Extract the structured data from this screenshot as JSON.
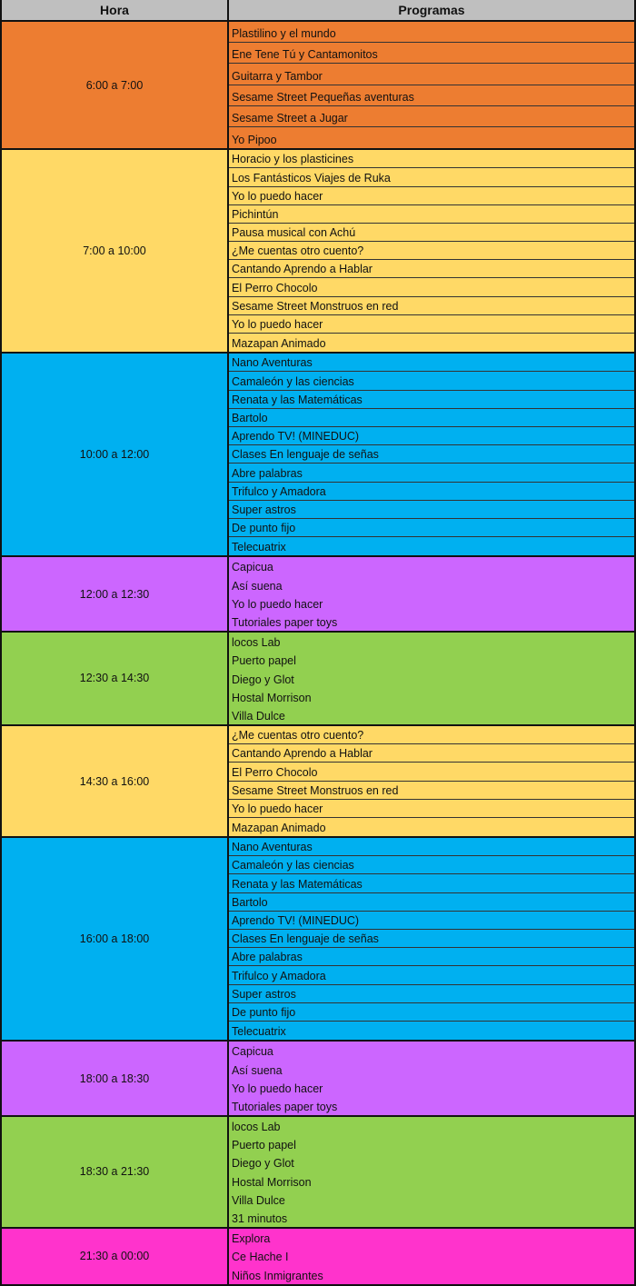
{
  "header": {
    "hora": "Hora",
    "programas": "Programas"
  },
  "blocks": [
    {
      "hora": "6:00 a 7:00",
      "color": "#ED7D31",
      "row_lines": true,
      "programs": [
        "Plastilino y el mundo",
        "Ene Tene Tú y Cantamonitos",
        "Guitarra y Tambor",
        "Sesame Street Pequeñas aventuras",
        "Sesame Street a Jugar",
        "Yo Pipoo"
      ]
    },
    {
      "hora": "7:00 a 10:00",
      "color": "#FFD966",
      "row_lines": true,
      "programs": [
        "Horacio y los plasticines",
        "Los Fantásticos Viajes de Ruka",
        "Yo lo puedo hacer",
        "Pichintún",
        "Pausa musical con Achú",
        "¿Me cuentas otro cuento?",
        "Cantando Aprendo a Hablar",
        "El Perro Chocolo",
        "Sesame Street Monstruos en red",
        "Yo lo puedo hacer",
        "Mazapan Animado"
      ]
    },
    {
      "hora": "10:00 a 12:00",
      "color": "#00B0F0",
      "row_lines": true,
      "programs": [
        "Nano Aventuras",
        "Camaleón y las ciencias",
        "Renata y las Matemáticas",
        "Bartolo",
        "Aprendo TV! (MINEDUC)",
        "Clases En lenguaje de señas",
        "Abre palabras",
        "Trifulco y Amadora",
        "Super astros",
        "De punto fijo",
        "Telecuatrix"
      ]
    },
    {
      "hora": "12:00 a 12:30",
      "color": "#CC66FF",
      "row_lines": false,
      "programs": [
        "Capicua",
        "Así suena",
        "Yo lo puedo hacer",
        "Tutoriales paper toys"
      ]
    },
    {
      "hora": "12:30 a 14:30",
      "color": "#92D050",
      "row_lines": false,
      "programs": [
        "locos Lab",
        "Puerto papel",
        "Diego y Glot",
        "Hostal Morrison",
        "Villa Dulce"
      ]
    },
    {
      "hora": "14:30 a 16:00",
      "color": "#FFD966",
      "row_lines": true,
      "programs": [
        "¿Me cuentas otro cuento?",
        "Cantando Aprendo a Hablar",
        "El Perro Chocolo",
        "Sesame Street Monstruos en red",
        "Yo lo puedo hacer",
        "Mazapan Animado"
      ]
    },
    {
      "hora": "16:00 a 18:00",
      "color": "#00B0F0",
      "row_lines": true,
      "programs": [
        "Nano Aventuras",
        "Camaleón y las ciencias",
        "Renata y las Matemáticas",
        "Bartolo",
        "Aprendo TV! (MINEDUC)",
        "Clases En lenguaje de señas",
        "Abre palabras",
        "Trifulco y Amadora",
        "Super astros",
        "De punto fijo",
        "Telecuatrix"
      ]
    },
    {
      "hora": "18:00 a 18:30",
      "color": "#CC66FF",
      "row_lines": false,
      "programs": [
        "Capicua",
        "Así suena",
        "Yo lo puedo hacer",
        "Tutoriales paper toys"
      ]
    },
    {
      "hora": "18:30 a 21:30",
      "color": "#92D050",
      "row_lines": false,
      "programs": [
        "locos Lab",
        "Puerto papel",
        "Diego y Glot",
        "Hostal Morrison",
        "Villa Dulce",
        "31 minutos"
      ]
    },
    {
      "hora": "21:30 a 00:00",
      "color": "#FF33CC",
      "row_lines": false,
      "programs": [
        "Explora",
        "Ce Hache I",
        "Niños Inmigrantes"
      ]
    }
  ]
}
